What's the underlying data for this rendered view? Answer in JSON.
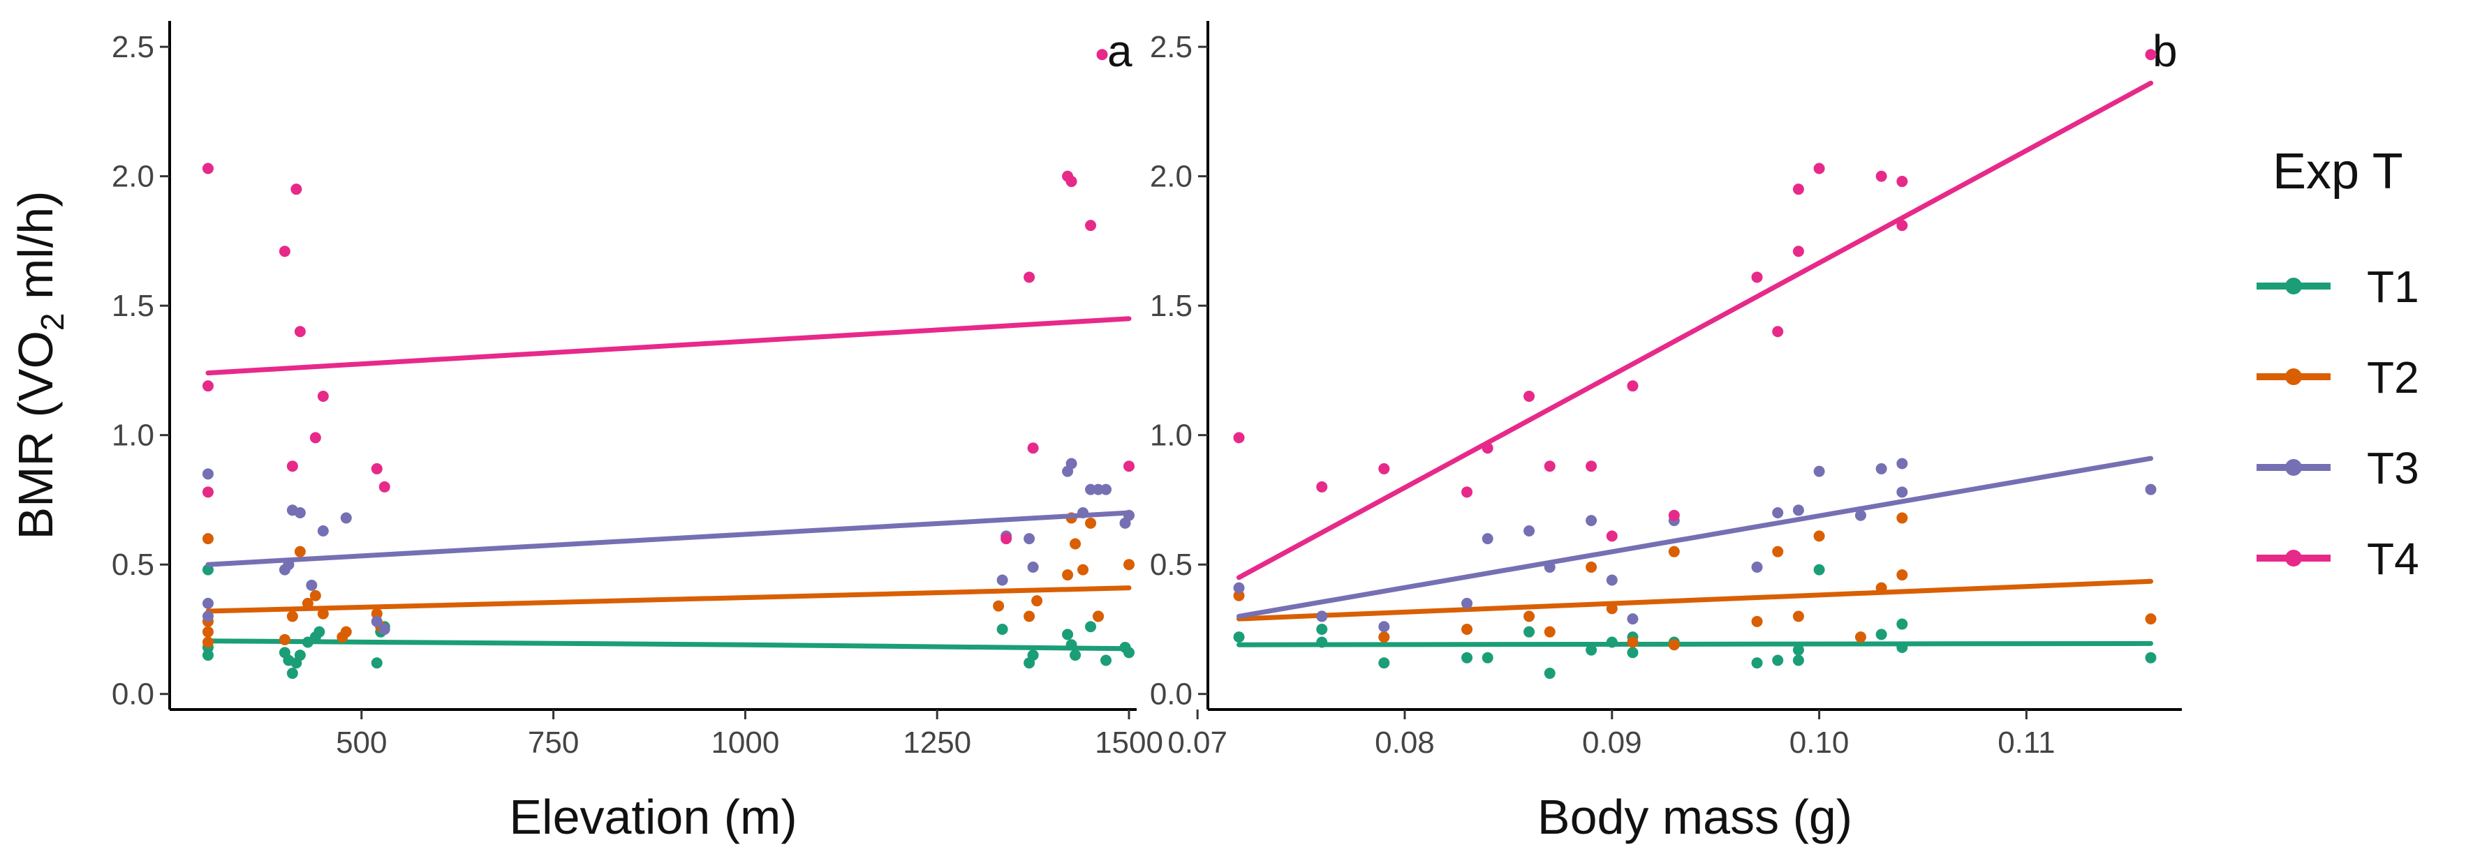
{
  "chart_data": [
    {
      "type": "scatter",
      "panel_label": "a",
      "xlabel": "Elevation (m)",
      "ylabel": "BMR (VO2 ml/h)",
      "ylabel_main": "BMR (VO",
      "ylabel_sub": "2",
      "ylabel_end": " ml/h)",
      "xlim": [
        250,
        1510
      ],
      "ylim": [
        -0.06,
        2.6
      ],
      "x_ticks": [
        500,
        750,
        1000,
        1250,
        1500
      ],
      "x_tick_labels": [
        "500",
        "750",
        "1000",
        "1250",
        "1500"
      ],
      "y_ticks": [
        0.0,
        0.5,
        1.0,
        1.5,
        2.0,
        2.5
      ],
      "y_tick_labels": [
        "0.0",
        "0.5",
        "1.0",
        "1.5",
        "2.0",
        "2.5"
      ],
      "series": [
        {
          "name": "T1",
          "color": "#1b9e77",
          "points": [
            [
              300,
              0.15
            ],
            [
              300,
              0.18
            ],
            [
              300,
              0.48
            ],
            [
              400,
              0.16
            ],
            [
              405,
              0.13
            ],
            [
              410,
              0.08
            ],
            [
              415,
              0.12
            ],
            [
              420,
              0.15
            ],
            [
              430,
              0.2
            ],
            [
              440,
              0.22
            ],
            [
              445,
              0.24
            ],
            [
              520,
              0.12
            ],
            [
              525,
              0.24
            ],
            [
              530,
              0.26
            ],
            [
              1335,
              0.25
            ],
            [
              1370,
              0.12
            ],
            [
              1375,
              0.15
            ],
            [
              1420,
              0.23
            ],
            [
              1425,
              0.19
            ],
            [
              1430,
              0.15
            ],
            [
              1450,
              0.26
            ],
            [
              1460,
              0.3
            ],
            [
              1470,
              0.13
            ],
            [
              1495,
              0.18
            ],
            [
              1500,
              0.16
            ]
          ],
          "fit": [
            [
              300,
              0.205
            ],
            [
              1000,
              0.19
            ],
            [
              1500,
              0.175
            ]
          ]
        },
        {
          "name": "T2",
          "color": "#d95f02",
          "points": [
            [
              300,
              0.2
            ],
            [
              300,
              0.24
            ],
            [
              300,
              0.28
            ],
            [
              300,
              0.6
            ],
            [
              400,
              0.21
            ],
            [
              410,
              0.3
            ],
            [
              420,
              0.55
            ],
            [
              430,
              0.35
            ],
            [
              440,
              0.38
            ],
            [
              450,
              0.31
            ],
            [
              475,
              0.22
            ],
            [
              480,
              0.24
            ],
            [
              520,
              0.31
            ],
            [
              525,
              0.26
            ],
            [
              1330,
              0.34
            ],
            [
              1370,
              0.3
            ],
            [
              1380,
              0.36
            ],
            [
              1420,
              0.46
            ],
            [
              1425,
              0.68
            ],
            [
              1430,
              0.58
            ],
            [
              1440,
              0.48
            ],
            [
              1450,
              0.66
            ],
            [
              1460,
              0.3
            ],
            [
              1500,
              0.5
            ]
          ],
          "fit": [
            [
              300,
              0.32
            ],
            [
              1500,
              0.41
            ]
          ]
        },
        {
          "name": "T3",
          "color": "#7570b3",
          "points": [
            [
              300,
              0.85
            ],
            [
              300,
              0.35
            ],
            [
              300,
              0.3
            ],
            [
              400,
              0.48
            ],
            [
              405,
              0.5
            ],
            [
              410,
              0.71
            ],
            [
              420,
              0.7
            ],
            [
              435,
              0.42
            ],
            [
              450,
              0.63
            ],
            [
              480,
              0.68
            ],
            [
              520,
              0.28
            ],
            [
              530,
              0.25
            ],
            [
              1335,
              0.44
            ],
            [
              1340,
              0.61
            ],
            [
              1370,
              0.6
            ],
            [
              1375,
              0.49
            ],
            [
              1420,
              0.86
            ],
            [
              1425,
              0.89
            ],
            [
              1440,
              0.7
            ],
            [
              1450,
              0.79
            ],
            [
              1460,
              0.79
            ],
            [
              1470,
              0.79
            ],
            [
              1495,
              0.66
            ],
            [
              1500,
              0.69
            ]
          ],
          "fit": [
            [
              300,
              0.5
            ],
            [
              1500,
              0.7
            ]
          ]
        },
        {
          "name": "T4",
          "color": "#e7298a",
          "points": [
            [
              300,
              2.03
            ],
            [
              300,
              1.19
            ],
            [
              300,
              0.78
            ],
            [
              400,
              1.71
            ],
            [
              410,
              0.88
            ],
            [
              415,
              1.95
            ],
            [
              420,
              1.4
            ],
            [
              440,
              0.99
            ],
            [
              450,
              1.15
            ],
            [
              520,
              0.87
            ],
            [
              530,
              0.8
            ],
            [
              1340,
              0.6
            ],
            [
              1370,
              1.61
            ],
            [
              1375,
              0.95
            ],
            [
              1420,
              2.0
            ],
            [
              1425,
              1.98
            ],
            [
              1450,
              1.81
            ],
            [
              1465,
              2.47
            ],
            [
              1500,
              0.88
            ]
          ],
          "fit": [
            [
              300,
              1.24
            ],
            [
              1500,
              1.45
            ]
          ]
        }
      ]
    },
    {
      "type": "scatter",
      "panel_label": "b",
      "xlabel": "Body mass (g)",
      "ylabel": "",
      "xlim": [
        0.0705,
        0.1175
      ],
      "ylim": [
        -0.06,
        2.6
      ],
      "x_ticks": [
        0.07,
        0.08,
        0.09,
        0.1,
        0.11
      ],
      "x_tick_labels": [
        "0.07",
        "0.08",
        "0.09",
        "0.10",
        "0.11"
      ],
      "y_ticks": [
        0.0,
        0.5,
        1.0,
        1.5,
        2.0,
        2.5
      ],
      "y_tick_labels": [
        "0.0",
        "0.5",
        "1.0",
        "1.5",
        "2.0",
        "2.5"
      ],
      "series": [
        {
          "name": "T1",
          "color": "#1b9e77",
          "points": [
            [
              0.072,
              0.22
            ],
            [
              0.076,
              0.25
            ],
            [
              0.076,
              0.2
            ],
            [
              0.079,
              0.12
            ],
            [
              0.079,
              0.22
            ],
            [
              0.083,
              0.14
            ],
            [
              0.084,
              0.14
            ],
            [
              0.086,
              0.24
            ],
            [
              0.087,
              0.08
            ],
            [
              0.089,
              0.17
            ],
            [
              0.09,
              0.2
            ],
            [
              0.091,
              0.16
            ],
            [
              0.091,
              0.22
            ],
            [
              0.093,
              0.2
            ],
            [
              0.097,
              0.12
            ],
            [
              0.098,
              0.13
            ],
            [
              0.099,
              0.13
            ],
            [
              0.099,
              0.17
            ],
            [
              0.1,
              0.48
            ],
            [
              0.103,
              0.23
            ],
            [
              0.104,
              0.27
            ],
            [
              0.104,
              0.18
            ],
            [
              0.116,
              0.14
            ]
          ],
          "fit": [
            [
              0.072,
              0.19
            ],
            [
              0.116,
              0.195
            ]
          ]
        },
        {
          "name": "T2",
          "color": "#d95f02",
          "points": [
            [
              0.072,
              0.38
            ],
            [
              0.076,
              0.3
            ],
            [
              0.079,
              0.22
            ],
            [
              0.083,
              0.25
            ],
            [
              0.086,
              0.3
            ],
            [
              0.087,
              0.24
            ],
            [
              0.089,
              0.49
            ],
            [
              0.09,
              0.33
            ],
            [
              0.091,
              0.2
            ],
            [
              0.093,
              0.55
            ],
            [
              0.093,
              0.19
            ],
            [
              0.097,
              0.28
            ],
            [
              0.098,
              0.55
            ],
            [
              0.099,
              0.3
            ],
            [
              0.1,
              0.61
            ],
            [
              0.102,
              0.22
            ],
            [
              0.103,
              0.41
            ],
            [
              0.104,
              0.68
            ],
            [
              0.104,
              0.46
            ],
            [
              0.116,
              0.29
            ]
          ],
          "fit": [
            [
              0.072,
              0.29
            ],
            [
              0.116,
              0.435
            ]
          ]
        },
        {
          "name": "T3",
          "color": "#7570b3",
          "points": [
            [
              0.072,
              0.41
            ],
            [
              0.076,
              0.3
            ],
            [
              0.079,
              0.26
            ],
            [
              0.083,
              0.35
            ],
            [
              0.084,
              0.6
            ],
            [
              0.086,
              0.63
            ],
            [
              0.087,
              0.49
            ],
            [
              0.089,
              0.67
            ],
            [
              0.09,
              0.44
            ],
            [
              0.091,
              0.29
            ],
            [
              0.093,
              0.67
            ],
            [
              0.097,
              0.49
            ],
            [
              0.098,
              0.7
            ],
            [
              0.099,
              0.71
            ],
            [
              0.1,
              0.86
            ],
            [
              0.102,
              0.69
            ],
            [
              0.103,
              0.87
            ],
            [
              0.104,
              0.89
            ],
            [
              0.104,
              0.78
            ],
            [
              0.116,
              0.79
            ]
          ],
          "fit": [
            [
              0.072,
              0.3
            ],
            [
              0.116,
              0.91
            ]
          ]
        },
        {
          "name": "T4",
          "color": "#e7298a",
          "points": [
            [
              0.072,
              0.99
            ],
            [
              0.076,
              0.8
            ],
            [
              0.079,
              0.87
            ],
            [
              0.083,
              0.78
            ],
            [
              0.084,
              0.95
            ],
            [
              0.086,
              1.15
            ],
            [
              0.087,
              0.88
            ],
            [
              0.089,
              0.88
            ],
            [
              0.09,
              0.61
            ],
            [
              0.091,
              1.19
            ],
            [
              0.093,
              0.69
            ],
            [
              0.097,
              1.61
            ],
            [
              0.098,
              1.4
            ],
            [
              0.099,
              1.71
            ],
            [
              0.099,
              1.95
            ],
            [
              0.1,
              2.03
            ],
            [
              0.103,
              2.0
            ],
            [
              0.104,
              1.98
            ],
            [
              0.104,
              1.81
            ],
            [
              0.116,
              2.47
            ]
          ],
          "fit": [
            [
              0.072,
              0.45
            ],
            [
              0.116,
              2.36
            ]
          ]
        }
      ]
    }
  ],
  "legend": {
    "title": "Exp T",
    "placement": "right",
    "items": [
      {
        "label": "T1",
        "color": "#1b9e77"
      },
      {
        "label": "T2",
        "color": "#d95f02"
      },
      {
        "label": "T3",
        "color": "#7570b3"
      },
      {
        "label": "T4",
        "color": "#e7298a"
      }
    ]
  }
}
